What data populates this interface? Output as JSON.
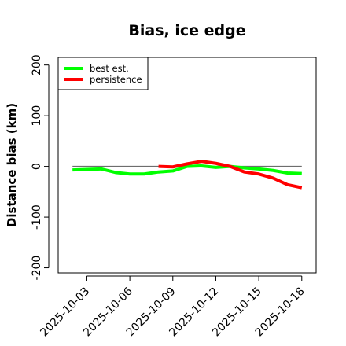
{
  "chart_data": {
    "type": "line",
    "title": "Bias, ice edge",
    "xlabel": "",
    "ylabel": "Distance bias (km)",
    "ylim": [
      -210,
      215
    ],
    "yticks": [
      -200,
      -100,
      0,
      100,
      200
    ],
    "xlim": [
      "2025-10-01",
      "2025-10-19"
    ],
    "xticks": [
      "2025-10-03",
      "2025-10-06",
      "2025-10-09",
      "2025-10-12",
      "2025-10-15",
      "2025-10-18"
    ],
    "reference_line": {
      "y": 0,
      "from": "2025-10-02",
      "to": "2025-10-18",
      "color": "#6d6d6d"
    },
    "legend_position": "top-left",
    "grid": false,
    "series": [
      {
        "name": "best est.",
        "color": "#00ff00",
        "points": [
          [
            "2025-10-02",
            -7
          ],
          [
            "2025-10-03",
            -6
          ],
          [
            "2025-10-04",
            -5
          ],
          [
            "2025-10-05",
            -12
          ],
          [
            "2025-10-06",
            -15
          ],
          [
            "2025-10-07",
            -15
          ],
          [
            "2025-10-08",
            -11
          ],
          [
            "2025-10-09",
            -9
          ],
          [
            "2025-10-10",
            0
          ],
          [
            "2025-10-11",
            1
          ],
          [
            "2025-10-12",
            -2
          ],
          [
            "2025-10-13",
            0
          ],
          [
            "2025-10-14",
            -3
          ],
          [
            "2025-10-15",
            -5
          ],
          [
            "2025-10-16",
            -8
          ],
          [
            "2025-10-17",
            -13
          ],
          [
            "2025-10-18",
            -14
          ]
        ]
      },
      {
        "name": "persistence",
        "color": "#ff0000",
        "points": [
          [
            "2025-10-08",
            0
          ],
          [
            "2025-10-09",
            -1
          ],
          [
            "2025-10-10",
            5
          ],
          [
            "2025-10-11",
            10
          ],
          [
            "2025-10-12",
            6
          ],
          [
            "2025-10-13",
            0
          ],
          [
            "2025-10-14",
            -11
          ],
          [
            "2025-10-15",
            -15
          ],
          [
            "2025-10-16",
            -23
          ],
          [
            "2025-10-17",
            -36
          ],
          [
            "2025-10-18",
            -42
          ]
        ]
      }
    ]
  }
}
